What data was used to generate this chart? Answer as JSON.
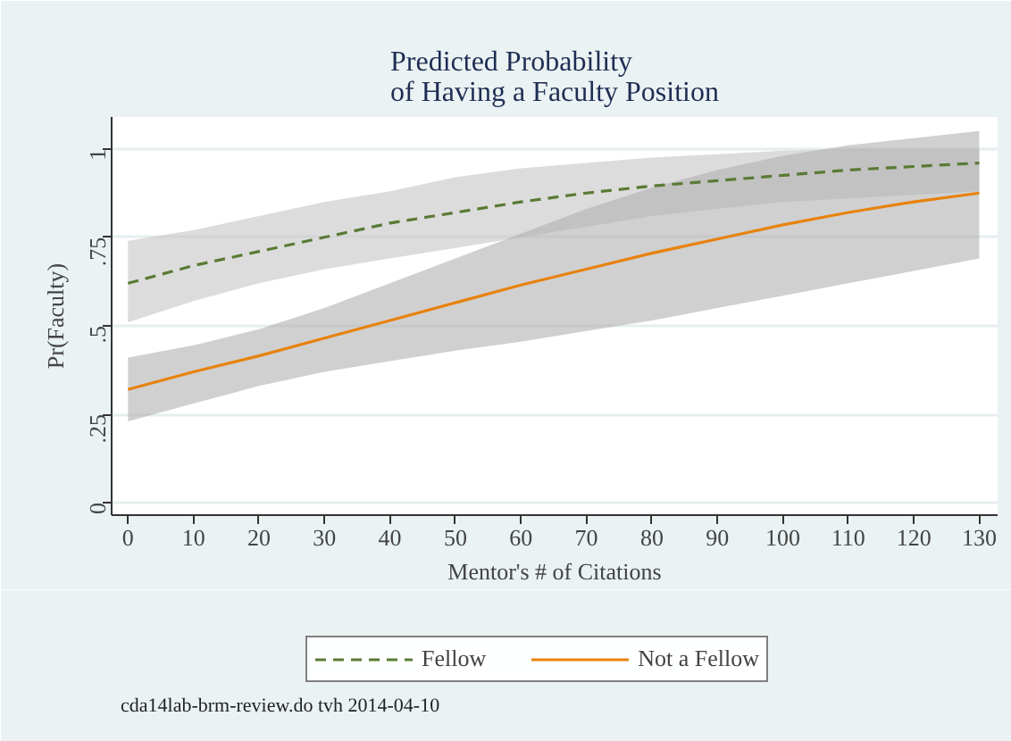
{
  "chart_data": {
    "type": "line",
    "title": "Predicted Probability\nof Having a Faculty Position",
    "xlabel": "Mentor's # of Citations",
    "ylabel": "Pr(Faculty)",
    "x": [
      0,
      10,
      20,
      30,
      40,
      50,
      60,
      70,
      80,
      90,
      100,
      110,
      120,
      130
    ],
    "series": [
      {
        "name": "Fellow",
        "color": "#5a7a34",
        "line_style": "dashed",
        "values": [
          0.62,
          0.67,
          0.71,
          0.75,
          0.79,
          0.82,
          0.85,
          0.875,
          0.895,
          0.91,
          0.925,
          0.94,
          0.95,
          0.96
        ],
        "lower": [
          0.51,
          0.57,
          0.62,
          0.66,
          0.69,
          0.72,
          0.75,
          0.78,
          0.81,
          0.83,
          0.85,
          0.86,
          0.87,
          0.88
        ],
        "upper": [
          0.74,
          0.77,
          0.81,
          0.85,
          0.88,
          0.92,
          0.945,
          0.96,
          0.975,
          0.985,
          0.995,
          1.0,
          1.0,
          1.0
        ]
      },
      {
        "name": "Not a Fellow",
        "color": "#e8820c",
        "line_style": "solid",
        "values": [
          0.32,
          0.37,
          0.415,
          0.465,
          0.515,
          0.565,
          0.615,
          0.66,
          0.705,
          0.745,
          0.785,
          0.82,
          0.85,
          0.875
        ],
        "lower": [
          0.23,
          0.28,
          0.33,
          0.37,
          0.4,
          0.43,
          0.455,
          0.485,
          0.515,
          0.55,
          0.585,
          0.62,
          0.655,
          0.69
        ],
        "upper": [
          0.41,
          0.445,
          0.49,
          0.55,
          0.62,
          0.69,
          0.76,
          0.83,
          0.89,
          0.94,
          0.98,
          1.01,
          1.03,
          1.05
        ]
      }
    ],
    "xlim": [
      -2.5,
      132.8
    ],
    "ylim": [
      -0.035,
      1.09
    ],
    "xticks": [
      0,
      10,
      20,
      30,
      40,
      50,
      60,
      70,
      80,
      90,
      100,
      110,
      120,
      130
    ],
    "yticks": [
      {
        "value": 0,
        "label": "0"
      },
      {
        "value": 0.25,
        "label": ".25"
      },
      {
        "value": 0.5,
        "label": ".5"
      },
      {
        "value": 0.75,
        "label": ".75"
      },
      {
        "value": 1,
        "label": "1"
      }
    ],
    "grid": "y",
    "legend": "bottom",
    "marker": "none",
    "annotations": [
      "cda14lab-brm-review.do tvh 2014-04-10"
    ]
  }
}
